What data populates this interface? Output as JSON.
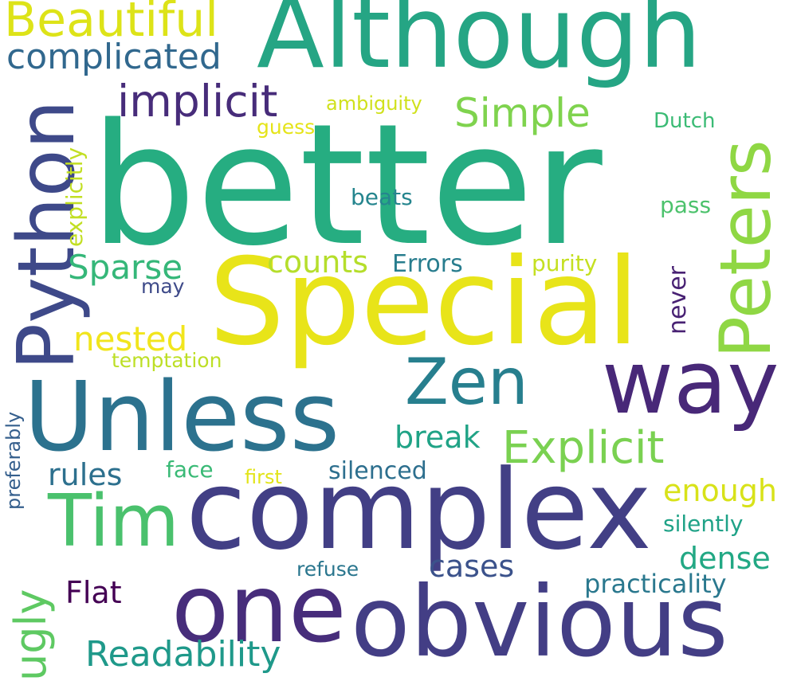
{
  "words": [
    {
      "key": "better",
      "text": "better",
      "color": "#26ad81"
    },
    {
      "key": "complex",
      "text": "complex",
      "color": "#423f85"
    },
    {
      "key": "special",
      "text": "Special",
      "color": "#e8e419"
    },
    {
      "key": "obvious",
      "text": "obvious",
      "color": "#433e85"
    },
    {
      "key": "although",
      "text": "Although",
      "color": "#25a584"
    },
    {
      "key": "unless",
      "text": "Unless",
      "color": "#2c728e"
    },
    {
      "key": "one",
      "text": "one",
      "color": "#472d7b"
    },
    {
      "key": "way",
      "text": "way",
      "color": "#482878"
    },
    {
      "key": "python",
      "text": "Python",
      "color": "#3e4989"
    },
    {
      "key": "peters",
      "text": "Peters",
      "color": "#8fd744"
    },
    {
      "key": "tim",
      "text": "Tim",
      "color": "#4ac16d"
    },
    {
      "key": "zen",
      "text": "Zen",
      "color": "#277f8e"
    },
    {
      "key": "beautiful",
      "text": "Beautiful",
      "color": "#dde318"
    },
    {
      "key": "implicit",
      "text": "implicit",
      "color": "#472c7a"
    },
    {
      "key": "explicit",
      "text": "Explicit",
      "color": "#7ad151"
    },
    {
      "key": "complicated",
      "text": "complicated",
      "color": "#31688e"
    },
    {
      "key": "simple",
      "text": "Simple",
      "color": "#7fd34e"
    },
    {
      "key": "ugly",
      "text": "ugly",
      "color": "#5ec962"
    },
    {
      "key": "readability",
      "text": "Readability",
      "color": "#1f998a"
    },
    {
      "key": "sparse",
      "text": "Sparse",
      "color": "#35b779"
    },
    {
      "key": "nested",
      "text": "nested",
      "color": "#f1e51d"
    },
    {
      "key": "counts",
      "text": "counts",
      "color": "#b5de2b"
    },
    {
      "key": "break",
      "text": "break",
      "color": "#20a386"
    },
    {
      "key": "flat",
      "text": "Flat",
      "color": "#440154"
    },
    {
      "key": "rules",
      "text": "rules",
      "color": "#2d708e"
    },
    {
      "key": "cases",
      "text": "cases",
      "color": "#3b528b"
    },
    {
      "key": "enough",
      "text": "enough",
      "color": "#d8e219"
    },
    {
      "key": "dense",
      "text": "dense",
      "color": "#22a884"
    },
    {
      "key": "explicitly",
      "text": "explicitly",
      "color": "#c2df23"
    },
    {
      "key": "errors",
      "text": "Errors",
      "color": "#287d8e"
    },
    {
      "key": "beats",
      "text": "beats",
      "color": "#25858e"
    },
    {
      "key": "never",
      "text": "never",
      "color": "#482173"
    },
    {
      "key": "practicality",
      "text": "practicality",
      "color": "#2a788e"
    },
    {
      "key": "silenced",
      "text": "silenced",
      "color": "#2d6f8e"
    },
    {
      "key": "face",
      "text": "face",
      "color": "#3aba76"
    },
    {
      "key": "silently",
      "text": "silently",
      "color": "#1fa287"
    },
    {
      "key": "temptation",
      "text": "temptation",
      "color": "#bddf26"
    },
    {
      "key": "ambiguity",
      "text": "ambiguity",
      "color": "#d0e11c"
    },
    {
      "key": "purity",
      "text": "purity",
      "color": "#c5e021"
    },
    {
      "key": "pass",
      "text": "pass",
      "color": "#4cc26c"
    },
    {
      "key": "dutch",
      "text": "Dutch",
      "color": "#3bbb75"
    },
    {
      "key": "guess",
      "text": "guess",
      "color": "#e5e419"
    },
    {
      "key": "refuse",
      "text": "refuse",
      "color": "#2a768e"
    },
    {
      "key": "first",
      "text": "first",
      "color": "#e2e418"
    },
    {
      "key": "may",
      "text": "may",
      "color": "#3e4a89"
    },
    {
      "key": "preferably",
      "text": "preferably",
      "color": "#355f8d"
    }
  ]
}
